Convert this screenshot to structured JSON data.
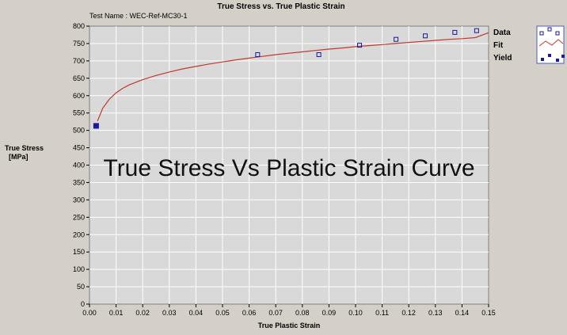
{
  "chart_data": {
    "type": "scatter",
    "title": "True Stress vs. True Plastic Strain",
    "subtitle": "Test Name : WEC-Ref-MC30-1",
    "xlabel": "True Plastic Strain",
    "ylabel_lines": [
      "True Stress",
      "[MPa]"
    ],
    "xlim": [
      0,
      0.15
    ],
    "ylim": [
      0,
      800
    ],
    "x_ticks": [
      "0.00",
      "0.01",
      "0.02",
      "0.03",
      "0.04",
      "0.05",
      "0.06",
      "0.07",
      "0.08",
      "0.09",
      "0.10",
      "0.11",
      "0.12",
      "0.13",
      "0.14",
      "0.15"
    ],
    "y_ticks": [
      "0",
      "50",
      "100",
      "150",
      "200",
      "250",
      "300",
      "350",
      "400",
      "450",
      "500",
      "550",
      "600",
      "650",
      "700",
      "750",
      "800"
    ],
    "grid": true,
    "legend_position": "right",
    "series": [
      {
        "name": "Data",
        "kind": "open-square-markers",
        "color": "#1a1a9a",
        "x": [
          0.0632,
          0.0862,
          0.1015,
          0.1152,
          0.1262,
          0.1373,
          0.1455
        ],
        "y": [
          718,
          718,
          745,
          762,
          772,
          782,
          787
        ]
      },
      {
        "name": "Fit",
        "kind": "line",
        "color": "#c0392b",
        "x": [
          0.003,
          0.005,
          0.0075,
          0.01,
          0.0125,
          0.015,
          0.02,
          0.025,
          0.03,
          0.035,
          0.04,
          0.045,
          0.05,
          0.055,
          0.06,
          0.065,
          0.07,
          0.075,
          0.08,
          0.085,
          0.09,
          0.095,
          0.1,
          0.105,
          0.11,
          0.115,
          0.12,
          0.125,
          0.13,
          0.135,
          0.14,
          0.145,
          0.15
        ],
        "y": [
          527,
          564,
          590,
          608,
          621,
          631,
          646,
          658,
          668,
          677,
          684,
          691,
          697,
          703,
          708,
          713,
          718,
          722,
          726,
          730,
          734,
          737,
          741,
          744,
          747,
          750,
          753,
          756,
          759,
          762,
          764,
          767,
          781
        ]
      },
      {
        "name": "Yield",
        "kind": "filled-square-marker",
        "color": "#1a1a9a",
        "x": [
          0.0025
        ],
        "y": [
          513
        ]
      }
    ]
  },
  "overlay_caption": "True Stress Vs Plastic Strain Curve",
  "colors": {
    "plot_background": "#d9d9d9",
    "grid": "#ffffff",
    "window": "#d4d0c8"
  }
}
